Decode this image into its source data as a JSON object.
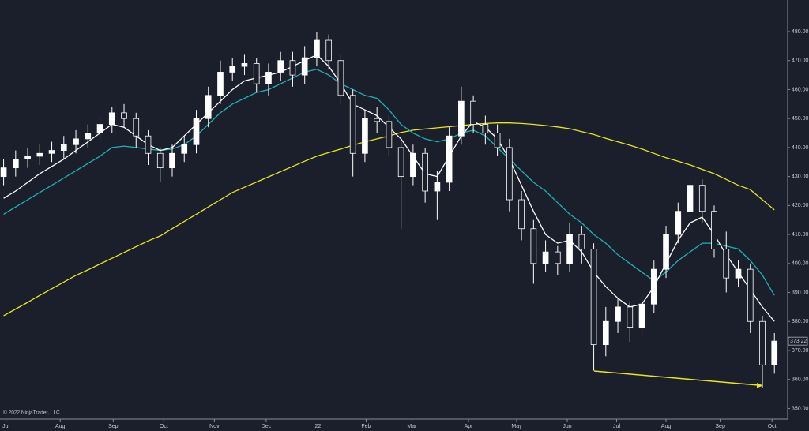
{
  "chart_data": {
    "type": "candlestick",
    "credit": "© 2022 NinjaTrader, LLC",
    "x": [
      0,
      1,
      2,
      3,
      4,
      5,
      6,
      7,
      8,
      9,
      10,
      11,
      12,
      13,
      14,
      15,
      16,
      17,
      18,
      19,
      20,
      21,
      22,
      23,
      24,
      25,
      26,
      27,
      28,
      29,
      30,
      31,
      32,
      33,
      34,
      35,
      36,
      37,
      38,
      39,
      40,
      41,
      42,
      43,
      44,
      45,
      46,
      47,
      48,
      49,
      50,
      51,
      52,
      53,
      54,
      55,
      56,
      57,
      58,
      59,
      60,
      61,
      62,
      63,
      64
    ],
    "open": [
      430,
      433,
      436,
      437,
      438,
      439,
      441,
      443,
      445,
      448,
      452,
      450,
      444,
      438,
      433,
      438,
      441,
      450,
      458,
      466,
      468,
      469,
      462,
      466,
      470,
      465,
      471,
      477,
      470,
      458,
      438,
      450,
      449,
      440,
      430,
      438,
      425,
      428,
      444,
      456,
      448,
      445,
      440,
      422,
      412,
      400,
      404,
      400,
      410,
      405,
      372,
      380,
      385,
      378,
      386,
      398,
      410,
      418,
      427,
      418,
      405,
      395,
      398,
      380,
      365
    ],
    "high": [
      436,
      439,
      440,
      441,
      442,
      444,
      446,
      448,
      451,
      454,
      455,
      452,
      446,
      440,
      441,
      444,
      453,
      461,
      470,
      471,
      472,
      471,
      469,
      473,
      473,
      475,
      480,
      479,
      472,
      460,
      453,
      454,
      451,
      442,
      441,
      440,
      432,
      447,
      461,
      458,
      451,
      448,
      443,
      425,
      415,
      408,
      406,
      414,
      413,
      407,
      385,
      388,
      387,
      389,
      401,
      413,
      421,
      431,
      429,
      420,
      411,
      401,
      400,
      382,
      376
    ],
    "low": [
      427,
      430,
      433,
      434,
      435,
      436,
      438,
      440,
      442,
      445,
      447,
      440,
      434,
      428,
      430,
      435,
      438,
      447,
      455,
      463,
      465,
      459,
      458,
      463,
      461,
      462,
      468,
      467,
      455,
      430,
      435,
      445,
      437,
      412,
      427,
      421,
      415,
      425,
      441,
      445,
      441,
      437,
      418,
      408,
      393,
      397,
      396,
      397,
      400,
      363,
      368,
      376,
      373,
      375,
      383,
      395,
      407,
      415,
      414,
      402,
      390,
      392,
      376,
      357,
      362
    ],
    "close": [
      433,
      436,
      437,
      438,
      439,
      441,
      443,
      445,
      448,
      452,
      450,
      444,
      438,
      433,
      438,
      441,
      450,
      458,
      466,
      468,
      469,
      462,
      466,
      470,
      465,
      471,
      477,
      470,
      458,
      438,
      450,
      449,
      440,
      430,
      438,
      425,
      428,
      444,
      456,
      448,
      445,
      440,
      422,
      412,
      400,
      404,
      400,
      410,
      405,
      372,
      380,
      385,
      378,
      386,
      398,
      410,
      418,
      427,
      418,
      405,
      395,
      398,
      380,
      365,
      373.22
    ],
    "up_color": "#ffffff",
    "down_color": "#1b1e2b",
    "wick_color": "#ffffff",
    "lines": [
      {
        "color": "#e8e61c",
        "values": [
          382,
          384.3,
          386.6,
          389,
          391.3,
          393.6,
          395.9,
          397.8,
          399.8,
          401.8,
          403.8,
          405.8,
          407.8,
          409.5,
          412,
          414.5,
          417,
          419.5,
          422,
          424.5,
          426.3,
          428.1,
          429.9,
          431.7,
          433.5,
          435.3,
          437,
          438.3,
          439.5,
          440.8,
          442,
          443,
          444,
          445.2,
          446,
          446.4,
          446.8,
          447.2,
          447.6,
          448,
          448.3,
          448.5,
          448.5,
          448.3,
          448,
          447.6,
          447.1,
          446.5,
          445.5,
          444.5,
          443.2,
          442,
          440.8,
          439.5,
          438,
          436.5,
          435.3,
          434,
          432.5,
          431,
          429,
          427,
          425.5,
          422,
          418.5
        ]
      },
      {
        "color": "#1fb3b3",
        "values": [
          417,
          419.5,
          422,
          424.5,
          427,
          429.5,
          432,
          434.5,
          437,
          440,
          440.5,
          440,
          439.5,
          439,
          439.5,
          441,
          444,
          448,
          452,
          455,
          457,
          459,
          460,
          462,
          464,
          466,
          467,
          465,
          462,
          460,
          458,
          457,
          453,
          448,
          445,
          443,
          442,
          443,
          445,
          446,
          444,
          440,
          436,
          432,
          428,
          425,
          421,
          417,
          414,
          410,
          407,
          403,
          400,
          397,
          394,
          397,
          401,
          404,
          407,
          407,
          406,
          405,
          401,
          396,
          389
        ]
      },
      {
        "color": "#ffffff",
        "values": [
          422.5,
          425,
          428,
          431,
          433.5,
          436,
          439,
          442,
          445,
          448,
          447,
          444,
          441,
          439,
          440,
          444,
          448,
          452,
          456,
          460,
          463,
          464,
          465,
          466,
          468,
          470,
          472,
          468,
          462,
          455,
          453,
          451,
          447,
          443,
          437,
          431,
          430,
          437,
          444,
          449,
          447,
          443,
          436,
          427,
          418,
          410,
          407,
          408,
          404,
          397,
          392,
          388,
          385,
          386,
          392,
          400,
          408,
          414,
          416,
          410,
          403,
          397,
          391,
          385,
          380
        ]
      }
    ],
    "last_price": {
      "value": 373.22,
      "label": "373.22"
    },
    "xlim": [
      -0.3,
      65.1
    ],
    "xticks": [
      {
        "value": 0.2,
        "label": "Jul"
      },
      {
        "value": 4.7,
        "label": "Aug"
      },
      {
        "value": 9.1,
        "label": "Sep"
      },
      {
        "value": 13.3,
        "label": "Oct"
      },
      {
        "value": 17.5,
        "label": "Nov"
      },
      {
        "value": 21.8,
        "label": "Dec"
      },
      {
        "value": 26.1,
        "label": "22"
      },
      {
        "value": 30.1,
        "label": "Feb"
      },
      {
        "value": 33.9,
        "label": "Mar"
      },
      {
        "value": 38.6,
        "label": "Apr"
      },
      {
        "value": 42.6,
        "label": "May"
      },
      {
        "value": 46.8,
        "label": "Jun"
      },
      {
        "value": 50.9,
        "label": "Jul"
      },
      {
        "value": 55,
        "label": "Aug"
      },
      {
        "value": 59.5,
        "label": "Sep"
      },
      {
        "value": 63.8,
        "label": "Oct"
      }
    ],
    "ylim": [
      346.3,
      490.9
    ],
    "yticks": [
      {
        "value": 350,
        "label": "350.00"
      },
      {
        "value": 360,
        "label": "360.00"
      },
      {
        "value": 370,
        "label": "370.00"
      },
      {
        "value": 380,
        "label": "380.00"
      },
      {
        "value": 390,
        "label": "390.00"
      },
      {
        "value": 400,
        "label": "400.00"
      },
      {
        "value": 410,
        "label": "410.00"
      },
      {
        "value": 420,
        "label": "420.00"
      },
      {
        "value": 430,
        "label": "430.00"
      },
      {
        "value": 440,
        "label": "440.00"
      },
      {
        "value": 450,
        "label": "450.00"
      },
      {
        "value": 460,
        "label": "460.00"
      },
      {
        "value": 470,
        "label": "470.00"
      },
      {
        "value": 480,
        "label": "480.00"
      }
    ]
  }
}
